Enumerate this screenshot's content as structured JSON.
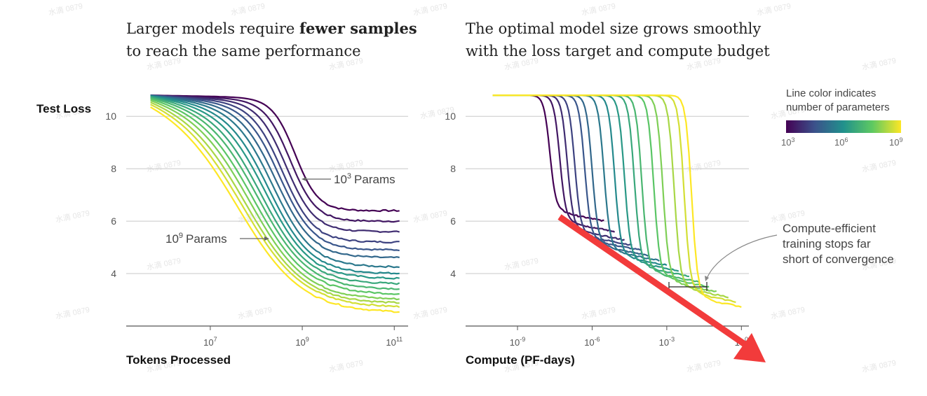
{
  "left_panel": {
    "title_line1_pre": "Larger models require ",
    "title_line1_bold": "fewer samples",
    "title_line2": "to reach the same performance",
    "ylabel": "Test Loss",
    "xlabel": "Tokens Processed",
    "annotation_small": "Params",
    "annotation_small_base": "10",
    "annotation_small_exp": "3",
    "annotation_large": "Params",
    "annotation_large_base": "10",
    "annotation_large_exp": "9"
  },
  "right_panel": {
    "title_line1": "The optimal model size grows smoothly",
    "title_line2": "with the loss target and compute budget",
    "xlabel": "Compute (PF-days)",
    "annotation_line1": "Compute-efficient",
    "annotation_line2": "training stops far",
    "annotation_line3": "short of convergence"
  },
  "colorbar": {
    "title_line1": "Line color indicates",
    "title_line2": "number of parameters",
    "ticks": [
      {
        "base": "10",
        "exp": "3"
      },
      {
        "base": "10",
        "exp": "6"
      },
      {
        "base": "10",
        "exp": "9"
      }
    ],
    "colors": [
      "#440154",
      "#3b528b",
      "#21918c",
      "#5ec962",
      "#fde725"
    ]
  },
  "overlay": {
    "watermark": "水滴 0879",
    "arrow_color": "#f23b3b"
  },
  "chart_data": [
    {
      "type": "line",
      "x_scale": "log",
      "xlabel": "Tokens Processed",
      "ylabel": "Test Loss",
      "xlim": [
        300000,
        200000000000
      ],
      "ylim": [
        2,
        11.5
      ],
      "x_ticks": [
        {
          "base": "10",
          "exp": "7",
          "value": 10000000
        },
        {
          "base": "10",
          "exp": "9",
          "value": 1000000000
        },
        {
          "base": "10",
          "exp": "11",
          "value": 100000000000
        }
      ],
      "y_ticks": [
        10,
        8,
        6,
        4
      ],
      "grid": true,
      "params_exponent": [
        3.0,
        3.4,
        3.8,
        4.2,
        4.6,
        5.0,
        5.4,
        5.8,
        6.2,
        6.6,
        7.0,
        7.4,
        7.8,
        8.2,
        8.6,
        9.0
      ],
      "start_x": 500000,
      "start_loss": 10.8,
      "drop_x": [
        700000000,
        550000000,
        450000000,
        380000000,
        330000000,
        280000000,
        240000000,
        200000000,
        170000000,
        140000000,
        120000000,
        100000000,
        85000000,
        70000000,
        60000000,
        50000000
      ],
      "final_loss": [
        6.4,
        6.0,
        5.6,
        5.2,
        4.9,
        4.6,
        4.25,
        4.0,
        3.8,
        3.6,
        3.4,
        3.2,
        3.0,
        2.85,
        2.7,
        2.5
      ]
    },
    {
      "type": "line",
      "x_scale": "log",
      "xlabel": "Compute (PF-days)",
      "ylabel": "",
      "xlim": [
        3e-11,
        2
      ],
      "ylim": [
        2,
        11.5
      ],
      "x_ticks": [
        {
          "base": "10",
          "exp": "-9",
          "value": 1e-09
        },
        {
          "base": "10",
          "exp": "-6",
          "value": 1e-06
        },
        {
          "base": "10",
          "exp": "-3",
          "value": 0.001
        },
        {
          "base": "10",
          "exp": "0",
          "value": 1
        }
      ],
      "y_ticks": [
        10,
        8,
        6,
        4
      ],
      "grid": true,
      "params_exponent": [
        3.0,
        3.4,
        3.8,
        4.2,
        4.6,
        5.0,
        5.4,
        5.8,
        6.2,
        6.6,
        7.0,
        7.4,
        7.8,
        8.2,
        8.6,
        9.0
      ],
      "start_x": 1e-10,
      "start_loss": 10.8,
      "drop_x": [
        2e-08,
        5e-08,
        1e-07,
        2e-07,
        5e-07,
        1e-06,
        3e-06,
        8e-06,
        2e-05,
        5e-05,
        0.0001,
        0.0003,
        0.0007,
        0.002,
        0.005,
        0.01
      ],
      "plateau_loss": [
        6.4,
        6.0,
        5.7,
        5.5,
        5.3,
        5.1,
        4.9,
        4.7,
        4.5,
        4.3,
        4.1,
        3.9,
        3.7,
        3.5,
        3.3,
        3.1
      ],
      "plateau_end_x": [
        3e-06,
        8e-06,
        2e-05,
        4e-05,
        0.0001,
        0.0002,
        0.0005,
        0.001,
        0.003,
        0.008,
        0.02,
        0.05,
        0.1,
        0.3,
        0.6,
        1.0
      ]
    }
  ]
}
